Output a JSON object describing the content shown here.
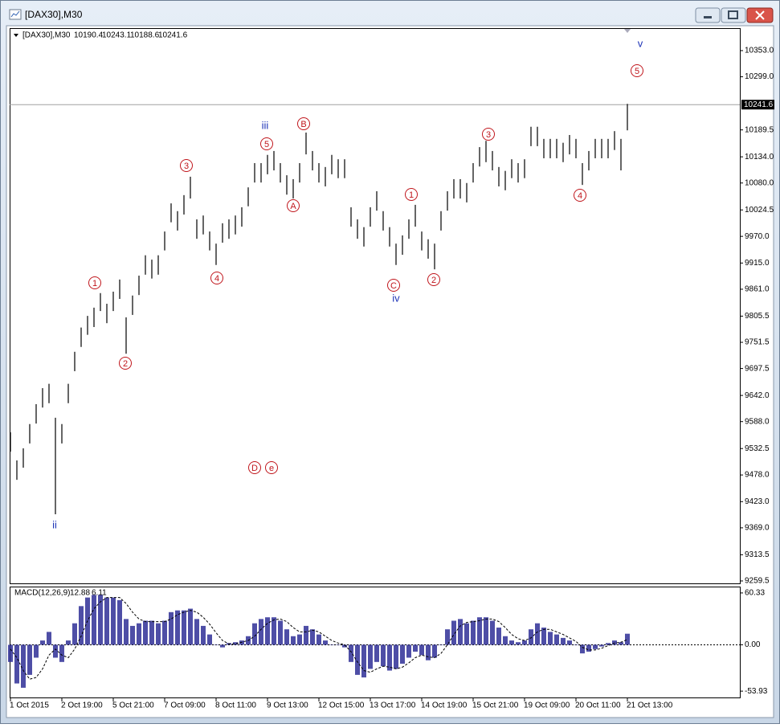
{
  "window": {
    "title": "[DAX30],M30"
  },
  "chart_data": [
    {
      "type": "ohlc",
      "title": "[DAX30],M30",
      "header_values": [
        10190.4,
        10243.1,
        10188.6,
        10241.6
      ],
      "categories": [
        "1 Oct 2015",
        null,
        null,
        null,
        null,
        null,
        null,
        null,
        "2 Oct 19:00",
        null,
        null,
        null,
        null,
        null,
        null,
        null,
        "5 Oct 21:00",
        null,
        null,
        null,
        null,
        null,
        null,
        null,
        "7 Oct 09:00",
        null,
        null,
        null,
        null,
        null,
        null,
        null,
        "8 Oct 11:00",
        null,
        null,
        null,
        null,
        null,
        null,
        null,
        "9 Oct 13:00",
        null,
        null,
        null,
        null,
        null,
        null,
        null,
        "12 Oct 15:00",
        null,
        null,
        null,
        null,
        null,
        null,
        null,
        "13 Oct 17:00",
        null,
        null,
        null,
        null,
        null,
        null,
        null,
        "14 Oct 19:00",
        null,
        null,
        null,
        null,
        null,
        null,
        null,
        "15 Oct 21:00",
        null,
        null,
        null,
        null,
        null,
        null,
        null,
        "19 Oct 09:00",
        null,
        null,
        null,
        null,
        null,
        null,
        null,
        "20 Oct 11:00",
        null,
        null,
        null,
        null,
        null,
        null,
        null,
        "21 Oct 13:00"
      ],
      "highs": [
        9566,
        9508,
        9533,
        9583,
        9624,
        9657,
        9666,
        9596,
        9583,
        9666,
        9732,
        9782,
        9806,
        9823,
        9853,
        9831,
        9856,
        9881,
        9803,
        9848,
        9889,
        9931,
        9922,
        9931,
        9980,
        10038,
        10022,
        10055,
        10093,
        10005,
        10013,
        9980,
        9955,
        9997,
        10005,
        10013,
        10030,
        10071,
        10121,
        10121,
        10138,
        10146,
        10121,
        10096,
        10088,
        10121,
        10184,
        10146,
        10121,
        10113,
        10138,
        10129,
        10129,
        10030,
        10005,
        9989,
        10030,
        10063,
        10022,
        9989,
        9955,
        9972,
        10005,
        10035,
        9980,
        9964,
        9955,
        10022,
        10063,
        10088,
        10088,
        10080,
        10121,
        10154,
        10167,
        10146,
        10113,
        10105,
        10129,
        10121,
        10129,
        10196,
        10196,
        10171,
        10171,
        10171,
        10163,
        10179,
        10171,
        10121,
        10146,
        10171,
        10171,
        10171,
        10187,
        10171,
        10243.1
      ],
      "lows": [
        9526,
        9468,
        9493,
        9543,
        9584,
        9617,
        9626,
        9397,
        9543,
        9626,
        9692,
        9742,
        9767,
        9783,
        9816,
        9791,
        9816,
        9841,
        9728,
        9808,
        9849,
        9891,
        9883,
        9891,
        9941,
        9999,
        9982,
        10015,
        10048,
        9965,
        9974,
        9941,
        9911,
        9957,
        9965,
        9974,
        9990,
        10032,
        10081,
        10081,
        10098,
        10106,
        10081,
        10056,
        10048,
        10081,
        10139,
        10106,
        10081,
        10073,
        10098,
        10090,
        10090,
        9990,
        9965,
        9949,
        9990,
        10023,
        9982,
        9949,
        9911,
        9932,
        9965,
        9990,
        9941,
        9924,
        9902,
        9982,
        10023,
        10048,
        10048,
        10040,
        10081,
        10114,
        10123,
        10106,
        10073,
        10065,
        10090,
        10081,
        10090,
        10156,
        10156,
        10131,
        10131,
        10131,
        10123,
        10139,
        10131,
        10076,
        10106,
        10131,
        10131,
        10131,
        10148,
        10106,
        10188.6
      ],
      "color": "#000000",
      "last_price": 10241.6,
      "ylim": [
        9254.5,
        10397.7
      ],
      "yticks": [
        {
          "value": 10353,
          "label": "10353.0"
        },
        {
          "value": 10299,
          "label": "10299.0"
        },
        10189.5,
        {
          "value": 10134,
          "label": "10134.0"
        },
        {
          "value": 10080,
          "label": "10080.0"
        },
        10024.5,
        {
          "value": 9970,
          "label": "9970.0"
        },
        {
          "value": 9915,
          "label": "9915.0"
        },
        {
          "value": 9861,
          "label": "9861.0"
        },
        9805.5,
        9751.5,
        9697.5,
        {
          "value": 9642,
          "label": "9642.0"
        },
        {
          "value": 9588,
          "label": "9588.0"
        },
        9532.5,
        {
          "value": 9478,
          "label": "9478.0"
        },
        {
          "value": 9423,
          "label": "9423.0"
        },
        {
          "value": 9369,
          "label": "9369.0"
        },
        9313.5,
        9259.5
      ],
      "grid": false,
      "annotations": [
        {
          "text": "ii",
          "circled": false,
          "color": "#1f35b8"
        },
        {
          "text": "1",
          "circled": true,
          "color": "#c0161c"
        },
        {
          "text": "2",
          "circled": true,
          "color": "#c0161c"
        },
        {
          "text": "3",
          "circled": true,
          "color": "#c0161c"
        },
        {
          "text": "4",
          "circled": true,
          "color": "#c0161c"
        },
        {
          "text": "iii",
          "circled": false,
          "color": "#1f35b8"
        },
        {
          "text": "5",
          "circled": true,
          "color": "#c0161c"
        },
        {
          "text": "A",
          "circled": true,
          "color": "#c0161c"
        },
        {
          "text": "B",
          "circled": true,
          "color": "#c0161c"
        },
        {
          "text": "C",
          "circled": true,
          "color": "#c0161c"
        },
        {
          "text": "iv",
          "circled": false,
          "color": "#1f35b8"
        },
        {
          "text": "1",
          "circled": true,
          "color": "#c0161c"
        },
        {
          "text": "2",
          "circled": true,
          "color": "#c0161c"
        },
        {
          "text": "3",
          "circled": true,
          "color": "#c0161c"
        },
        {
          "text": "4",
          "circled": true,
          "color": "#c0161c"
        },
        {
          "text": "5",
          "circled": true,
          "color": "#c0161c"
        },
        {
          "text": "v",
          "circled": false,
          "color": "#1f35b8"
        },
        {
          "text": "D",
          "circled": true,
          "color": "#c0161c"
        },
        {
          "text": "e",
          "circled": true,
          "color": "#c0161c"
        }
      ]
    },
    {
      "type": "macd",
      "title": "MACD(12,26,9)",
      "color": "#2f2f96",
      "values": [
        -20,
        -45,
        -50,
        -35,
        -15,
        5,
        15,
        -15,
        -20,
        5,
        25,
        45,
        55,
        58,
        58,
        55,
        55,
        52,
        30,
        22,
        25,
        28,
        28,
        25,
        28,
        38,
        40,
        40,
        42,
        30,
        22,
        12,
        0,
        -3,
        2,
        3,
        5,
        10,
        25,
        30,
        32,
        32,
        28,
        18,
        10,
        12,
        22,
        18,
        12,
        5,
        0,
        0,
        -3,
        -20,
        -35,
        -38,
        -28,
        -20,
        -25,
        -30,
        -28,
        -22,
        -15,
        -8,
        -12,
        -18,
        -15,
        0,
        18,
        28,
        30,
        25,
        28,
        32,
        32,
        28,
        20,
        10,
        5,
        3,
        5,
        18,
        25,
        20,
        15,
        12,
        8,
        5,
        0,
        -10,
        -8,
        -5,
        -2,
        2,
        5,
        3,
        12.88
      ],
      "signal": [
        -5,
        -15,
        -30,
        -40,
        -38,
        -28,
        -12,
        -5,
        -12,
        -15,
        -5,
        10,
        28,
        42,
        50,
        55,
        55,
        55,
        48,
        38,
        30,
        27,
        27,
        27,
        27,
        30,
        35,
        38,
        40,
        38,
        32,
        24,
        14,
        5,
        1,
        1,
        3,
        5,
        10,
        18,
        25,
        29,
        30,
        27,
        20,
        15,
        15,
        17,
        15,
        10,
        5,
        2,
        0,
        -8,
        -20,
        -30,
        -32,
        -28,
        -25,
        -26,
        -28,
        -26,
        -21,
        -15,
        -12,
        -14,
        -15,
        -10,
        0,
        12,
        22,
        26,
        27,
        28,
        30,
        30,
        27,
        20,
        12,
        7,
        5,
        8,
        15,
        18,
        18,
        15,
        12,
        8,
        4,
        -3,
        -6,
        -6,
        -4,
        -1,
        2,
        3,
        6.11
      ],
      "ylim": [
        -61.3,
        66.8
      ],
      "yticks": [
        60.33,
        {
          "value": 0,
          "label": "0.00"
        },
        -53.93
      ]
    }
  ]
}
